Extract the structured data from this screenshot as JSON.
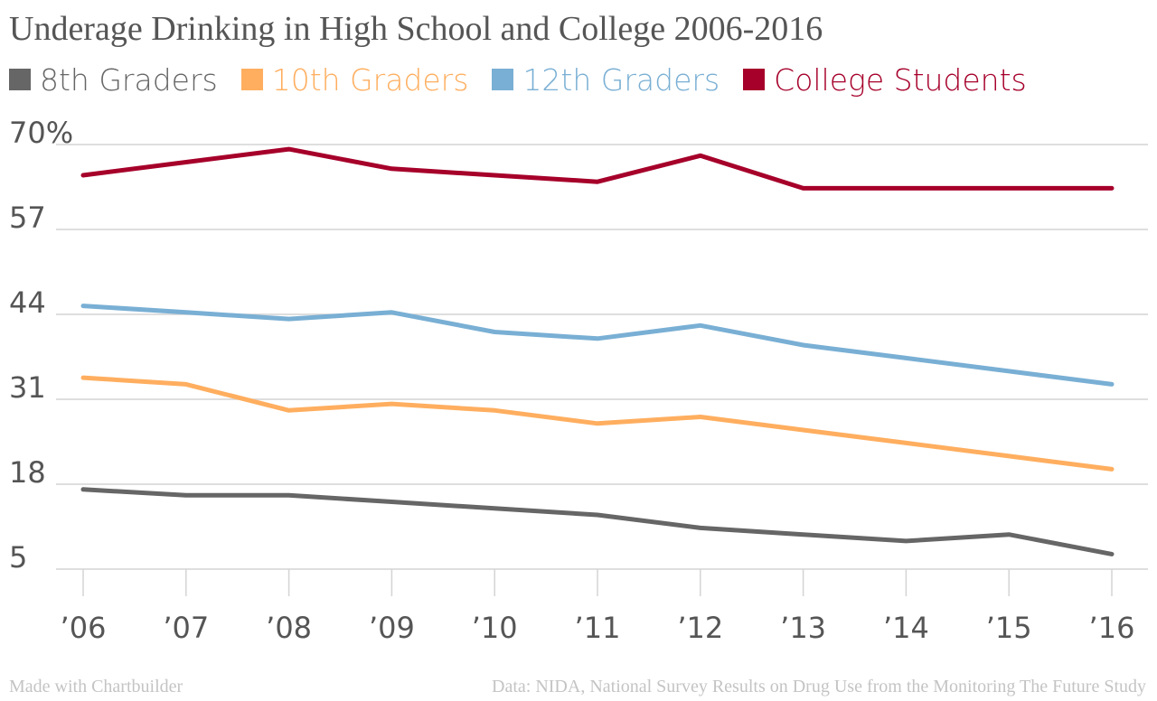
{
  "chart_data": {
    "type": "line",
    "title": "Underage Drinking in High School and College 2006-2016",
    "categories": [
      "’06",
      "’07",
      "’08",
      "’09",
      "’10",
      "’11",
      "’12",
      "’13",
      "’14",
      "’15",
      "’16"
    ],
    "ylim": [
      5,
      70
    ],
    "yticks": [
      {
        "value": 70,
        "label": "70%"
      },
      {
        "value": 57,
        "label": "57"
      },
      {
        "value": 44,
        "label": "44"
      },
      {
        "value": 31,
        "label": "31"
      },
      {
        "value": 18,
        "label": "18"
      },
      {
        "value": 5,
        "label": "5"
      }
    ],
    "grid": true,
    "legend_position": "top-left",
    "series": [
      {
        "name": "8th Graders",
        "color": "#666666",
        "values": [
          17.2,
          16.3,
          16.3,
          15.3,
          14.3,
          13.3,
          11.3,
          10.3,
          9.3,
          10.3,
          7.3
        ]
      },
      {
        "name": "10th Graders",
        "color": "#FFAE5F",
        "values": [
          34.3,
          33.3,
          29.3,
          30.3,
          29.3,
          27.3,
          28.3,
          26.3,
          24.3,
          22.3,
          20.3
        ]
      },
      {
        "name": "12th Graders",
        "color": "#79AFD4",
        "values": [
          45.3,
          44.3,
          43.3,
          44.3,
          41.3,
          40.3,
          42.3,
          39.3,
          37.3,
          35.3,
          33.3
        ]
      },
      {
        "name": "College Students",
        "color": "#A6002A",
        "values": [
          65.3,
          67.3,
          69.3,
          66.3,
          65.3,
          64.3,
          68.3,
          63.3,
          63.3,
          63.3,
          63.3
        ]
      }
    ],
    "xlabel": "",
    "ylabel": ""
  },
  "footer": {
    "left": "Made with Chartbuilder",
    "right": "Data: NIDA, National Survey Results on Drug Use from the Monitoring The Future Study"
  }
}
